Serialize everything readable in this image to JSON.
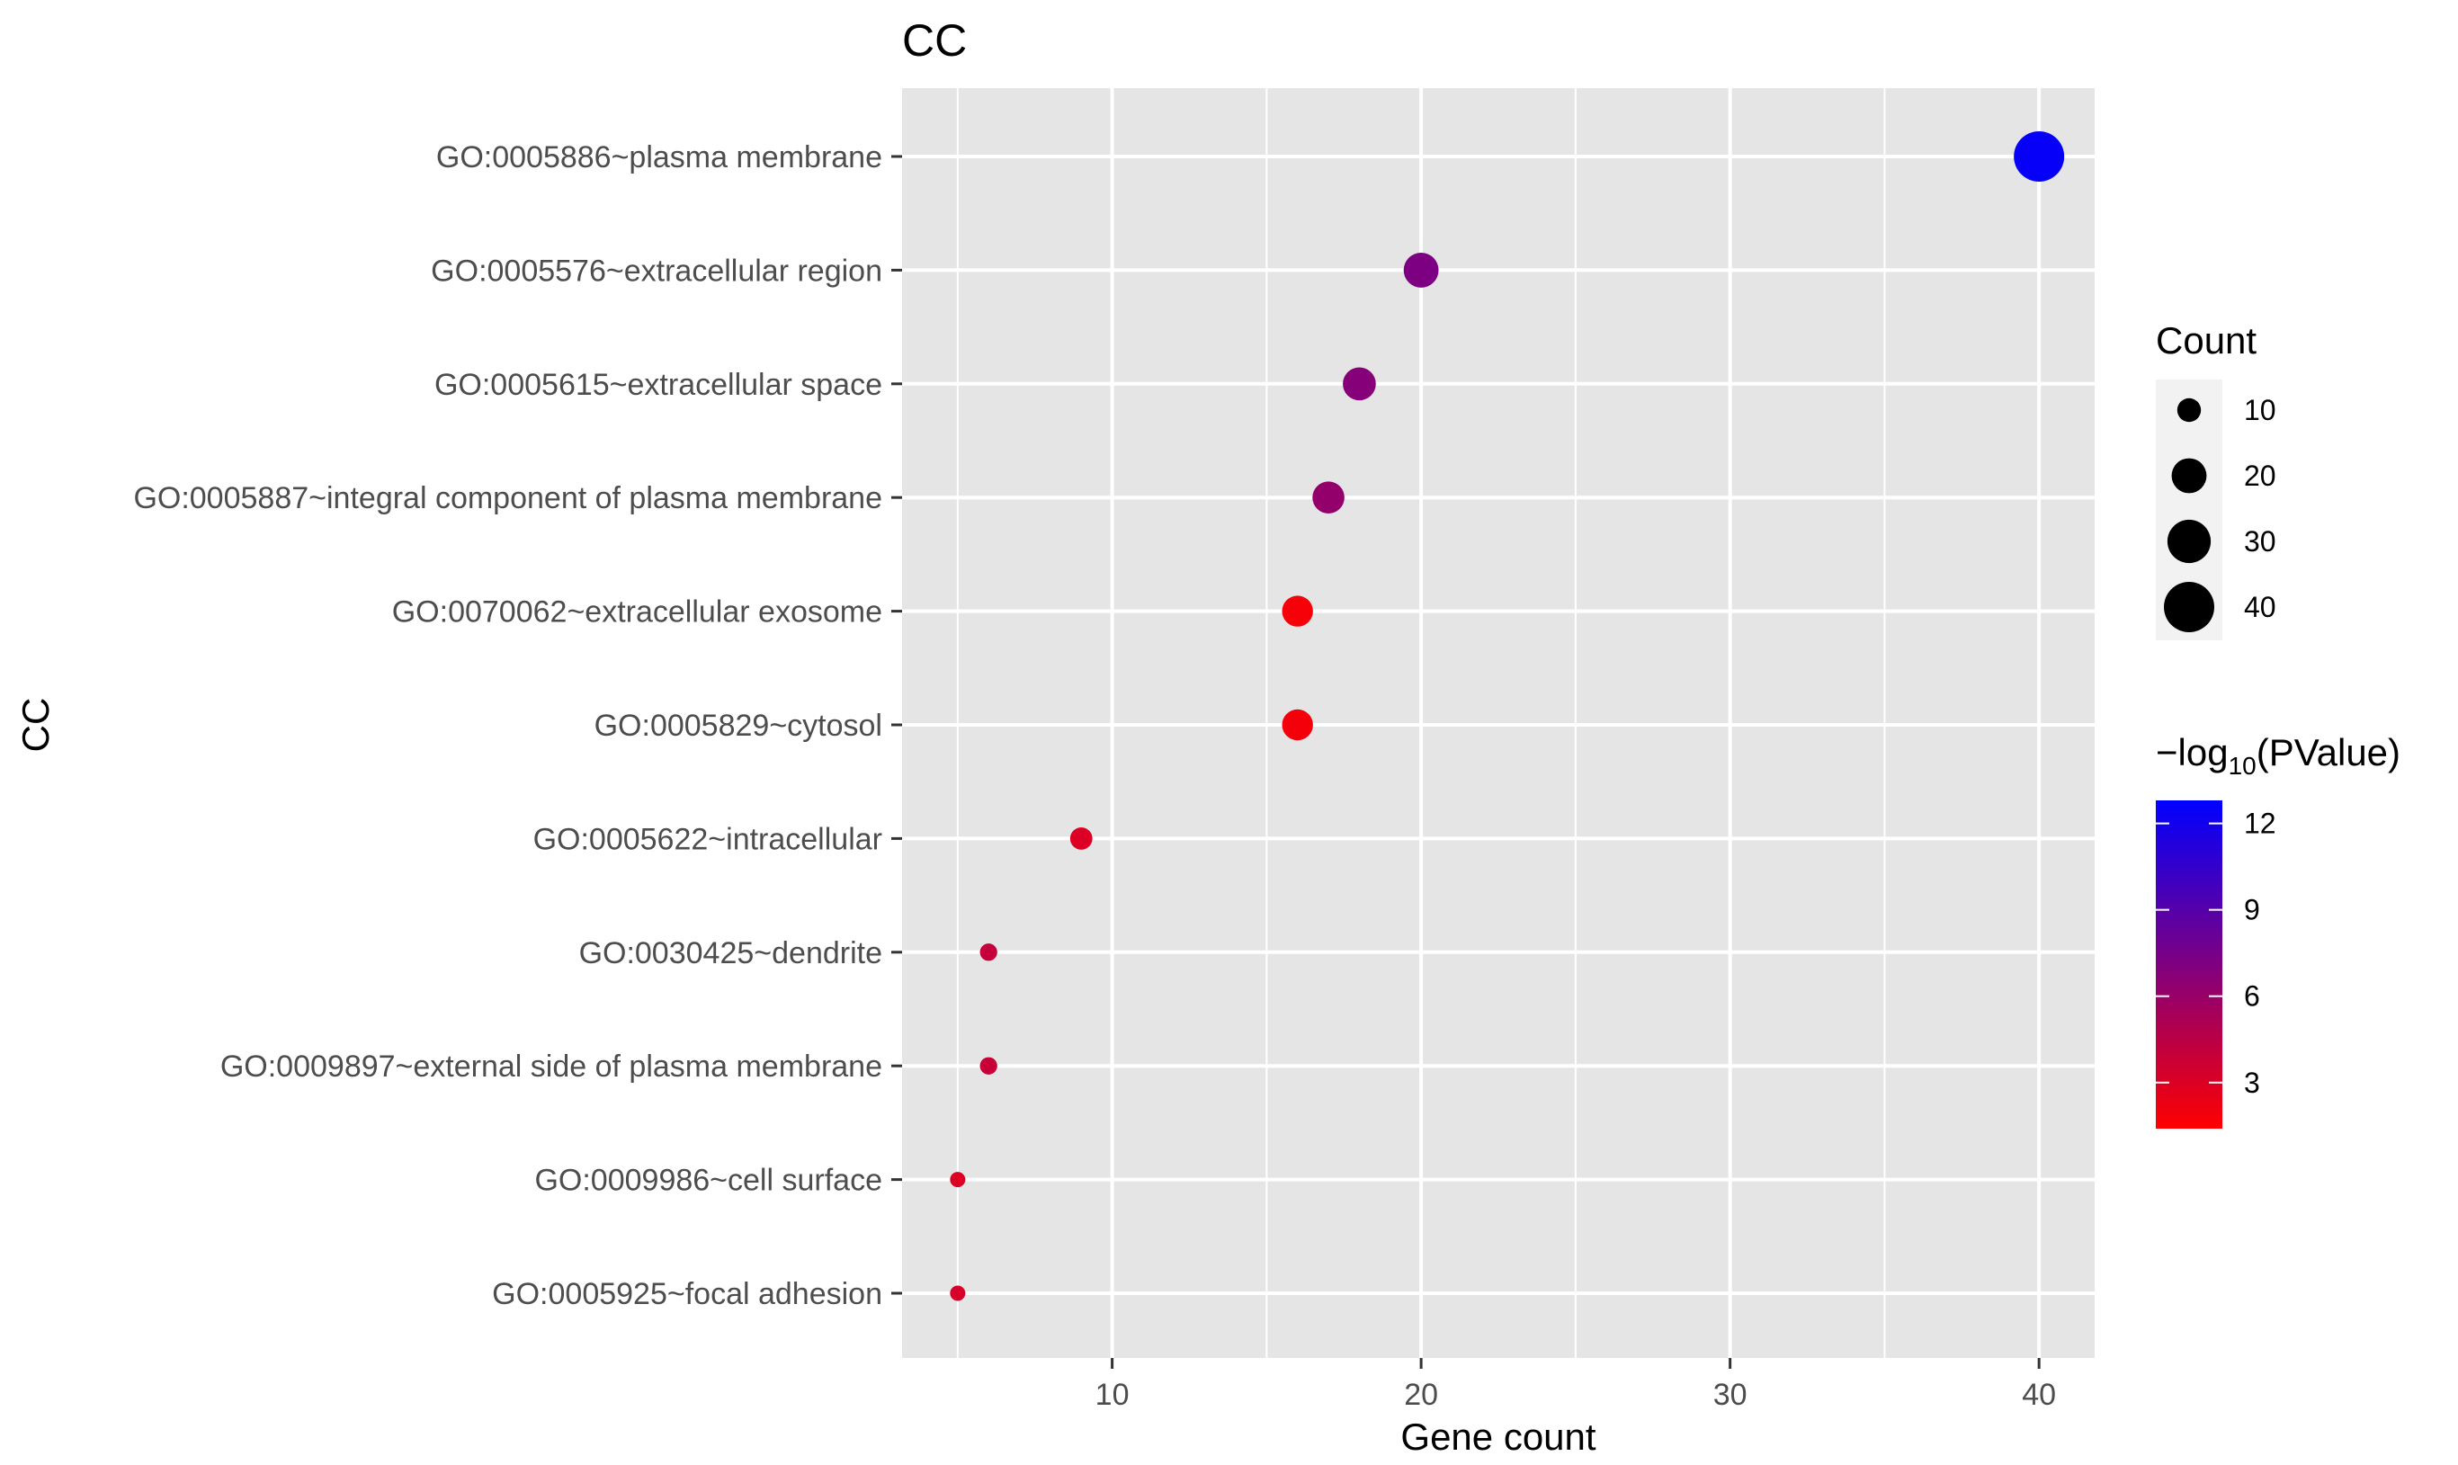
{
  "chart_data": {
    "type": "scatter",
    "title": "CC",
    "xlabel": "Gene count",
    "ylabel": "CC",
    "xlim": [
      3.2,
      41.8
    ],
    "x_ticks": [
      10,
      20,
      30,
      40
    ],
    "x_tick_labels": [
      "10",
      "20",
      "30",
      "40"
    ],
    "grid": true,
    "categories": [
      "GO:0005886~plasma membrane",
      "GO:0005576~extracellular region",
      "GO:0005615~extracellular space",
      "GO:0005887~integral component of plasma membrane",
      "GO:0070062~extracellular exosome",
      "GO:0005829~cytosol",
      "GO:0005622~intracellular",
      "GO:0030425~dendrite",
      "GO:0009897~external side of plasma membrane",
      "GO:0009986~cell surface",
      "GO:0005925~focal adhesion"
    ],
    "series": [
      {
        "x": [
          40,
          20,
          18,
          17,
          16,
          16,
          9,
          6,
          6,
          5,
          5
        ],
        "color_values": [
          12.5,
          7.2,
          6.8,
          6.2,
          1.8,
          1.9,
          3.0,
          4.0,
          3.9,
          3.0,
          3.2
        ],
        "size_values": [
          40,
          20,
          18,
          17,
          16,
          16,
          9,
          6,
          6,
          5,
          5
        ]
      }
    ],
    "size_legend": {
      "title": "Count",
      "values": [
        10,
        20,
        30,
        40
      ],
      "labels": [
        "10",
        "20",
        "30",
        "40"
      ]
    },
    "color_legend": {
      "title_prefix": "−log",
      "title_subscript": "10",
      "title_suffix": "(PValue)",
      "low_color": "#ff0000",
      "high_color": "#0000ff",
      "range": [
        1.4,
        12.8
      ],
      "ticks": [
        3,
        6,
        9,
        12
      ],
      "tick_labels": [
        "3",
        "6",
        "9",
        "12"
      ]
    },
    "legend_position": "right",
    "colors": {
      "panel_background": "#e5e5e5",
      "grid": "#ffffff",
      "legend_key_background": "#f2f2f2",
      "size_key_fill": "#000000"
    }
  }
}
